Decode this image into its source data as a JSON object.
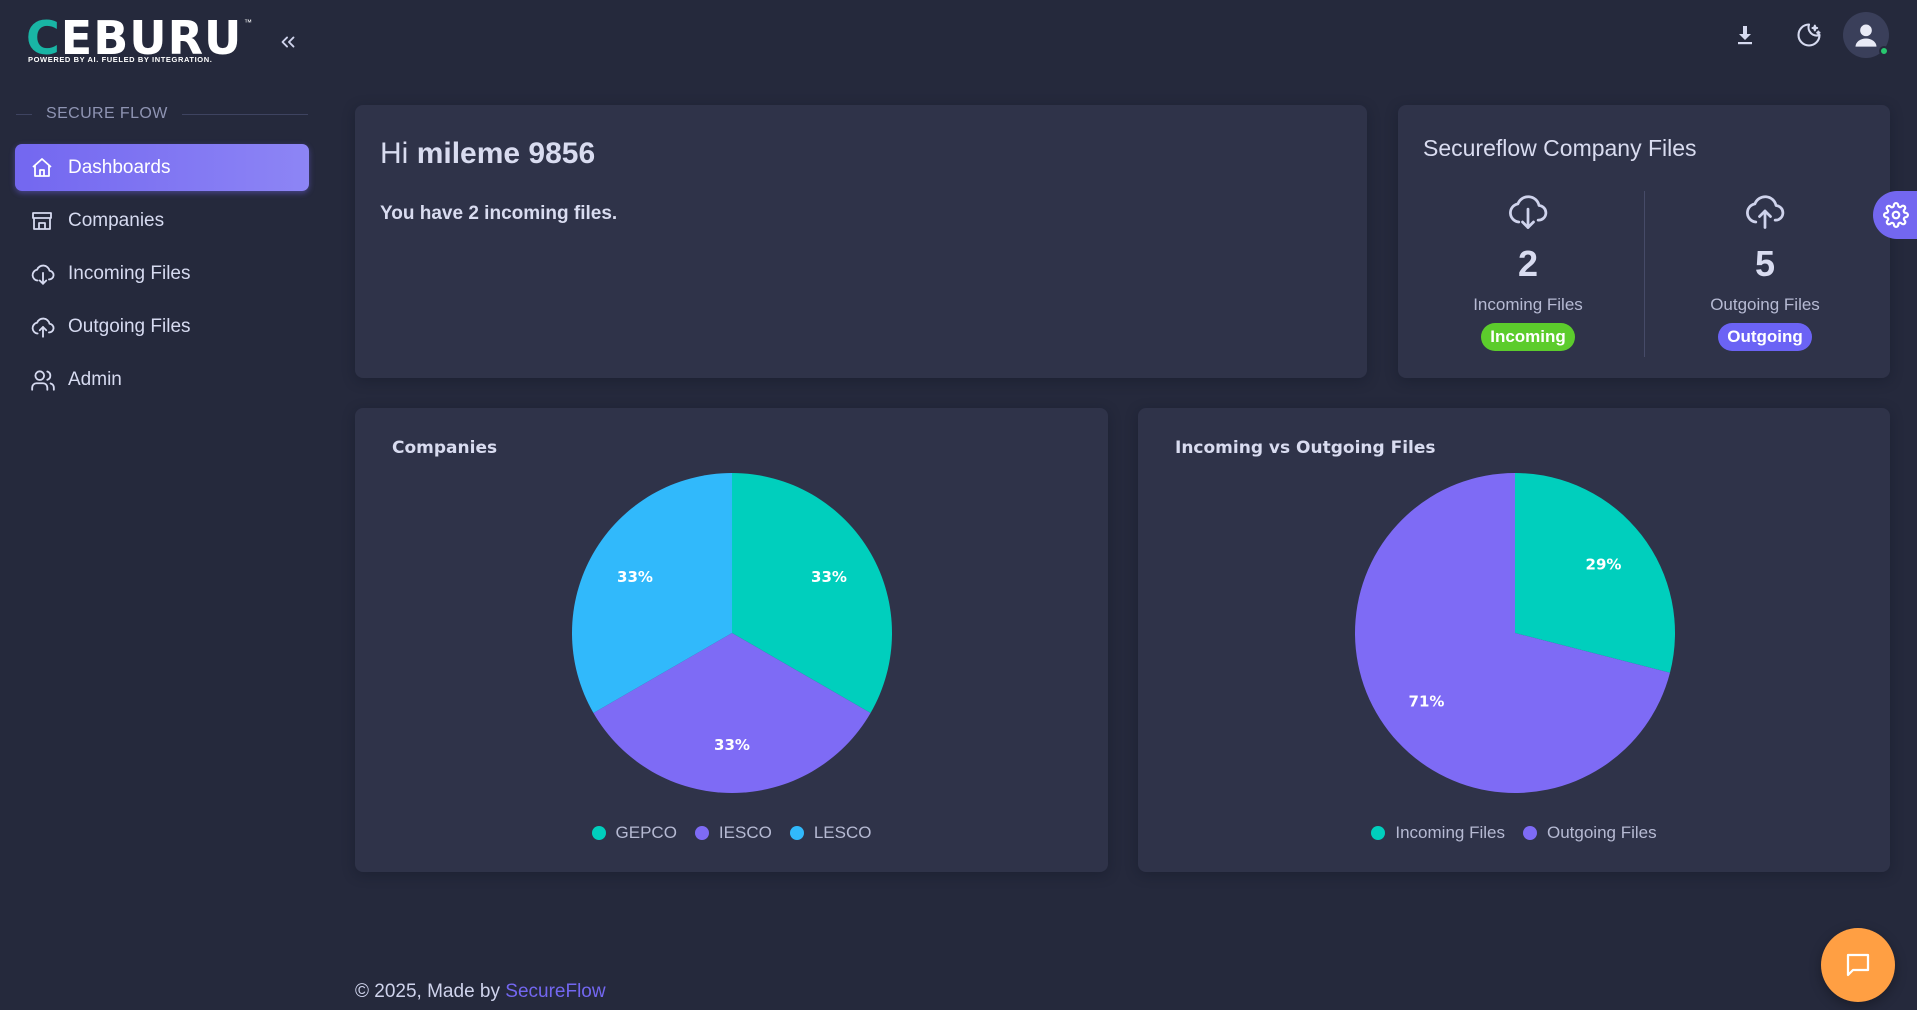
{
  "brand": {
    "logo_c": "C",
    "logo_rest": "EBURU",
    "tm": "™",
    "tagline": "POWERED BY AI. FUELED BY INTEGRATION."
  },
  "sidebar": {
    "section_label": "SECURE FLOW",
    "items": [
      {
        "label": "Dashboards",
        "icon": "home-icon",
        "active": true
      },
      {
        "label": "Companies",
        "icon": "store-icon"
      },
      {
        "label": "Incoming Files",
        "icon": "cloud-download-icon"
      },
      {
        "label": "Outgoing Files",
        "icon": "cloud-upload-icon"
      },
      {
        "label": "Admin",
        "icon": "users-icon"
      }
    ]
  },
  "topbar": {
    "icons": [
      "download-icon",
      "moon-stars-icon",
      "user-avatar-icon"
    ]
  },
  "welcome": {
    "greeting": "Hi",
    "username": "mileme 9856",
    "message": "You have 2 incoming files."
  },
  "files_card": {
    "title": "Secureflow Company Files",
    "incoming": {
      "count": "2",
      "label": "Incoming Files",
      "badge": "Incoming"
    },
    "outgoing": {
      "count": "5",
      "label": "Outgoing Files",
      "badge": "Outgoing"
    }
  },
  "colors": {
    "teal": "#00cfbd",
    "purple": "#7e6bf5",
    "sky": "#31b9fb",
    "accent": "#7367f0",
    "green": "#5ccc2c",
    "orange": "#ff9f43"
  },
  "chart_data": [
    {
      "type": "pie",
      "title": "Companies",
      "series": [
        {
          "name": "GEPCO",
          "value": 33,
          "label": "33%",
          "color": "#00cfbd"
        },
        {
          "name": "IESCO",
          "value": 33,
          "label": "33%",
          "color": "#7e6bf5"
        },
        {
          "name": "LESCO",
          "value": 33,
          "label": "33%",
          "color": "#31b9fb"
        }
      ],
      "legend": "bottom"
    },
    {
      "type": "pie",
      "title": "Incoming vs Outgoing Files",
      "series": [
        {
          "name": "Incoming Files",
          "value": 29,
          "label": "29%",
          "color": "#00cfbd"
        },
        {
          "name": "Outgoing Files",
          "value": 71,
          "label": "71%",
          "color": "#7e6bf5"
        }
      ],
      "legend": "bottom"
    }
  ],
  "footer": {
    "prefix": "© 2025, Made by",
    "link": "SecureFlow"
  }
}
